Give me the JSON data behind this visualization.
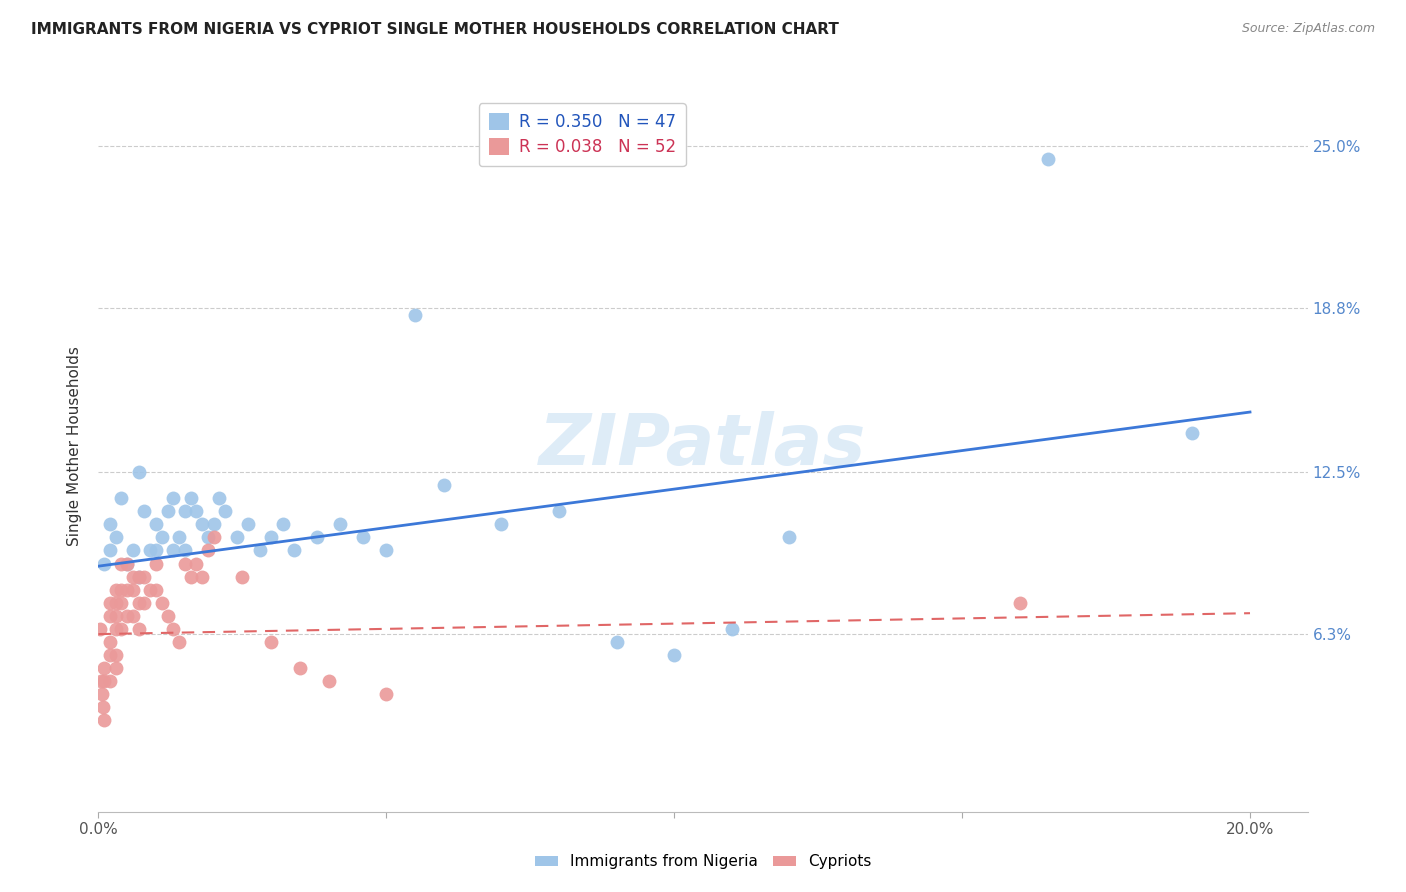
{
  "title": "IMMIGRANTS FROM NIGERIA VS CYPRIOT SINGLE MOTHER HOUSEHOLDS CORRELATION CHART",
  "source": "Source: ZipAtlas.com",
  "ylabel": "Single Mother Households",
  "xlim": [
    0.0,
    0.21
  ],
  "ylim": [
    -0.005,
    0.275
  ],
  "ytick_vals": [
    0.063,
    0.125,
    0.188,
    0.25
  ],
  "ytick_labels": [
    "6.3%",
    "12.5%",
    "18.8%",
    "25.0%"
  ],
  "legend_label_blue": "Immigrants from Nigeria",
  "legend_label_pink": "Cypriots",
  "blue_color": "#9fc5e8",
  "pink_color": "#ea9999",
  "trend_blue_color": "#3c78d8",
  "trend_pink_color": "#e06666",
  "watermark_color": "#d0e4f5",
  "background_color": "#ffffff",
  "grid_color": "#cccccc",
  "nigeria_x": [
    0.001,
    0.002,
    0.002,
    0.003,
    0.004,
    0.005,
    0.006,
    0.007,
    0.007,
    0.008,
    0.009,
    0.01,
    0.01,
    0.011,
    0.012,
    0.013,
    0.013,
    0.014,
    0.015,
    0.015,
    0.016,
    0.017,
    0.018,
    0.019,
    0.02,
    0.021,
    0.022,
    0.024,
    0.026,
    0.028,
    0.03,
    0.032,
    0.034,
    0.038,
    0.042,
    0.046,
    0.05,
    0.055,
    0.06,
    0.07,
    0.08,
    0.09,
    0.1,
    0.11,
    0.12,
    0.165,
    0.19
  ],
  "nigeria_y": [
    0.09,
    0.105,
    0.095,
    0.1,
    0.115,
    0.09,
    0.095,
    0.125,
    0.085,
    0.11,
    0.095,
    0.105,
    0.095,
    0.1,
    0.11,
    0.115,
    0.095,
    0.1,
    0.11,
    0.095,
    0.115,
    0.11,
    0.105,
    0.1,
    0.105,
    0.115,
    0.11,
    0.1,
    0.105,
    0.095,
    0.1,
    0.105,
    0.095,
    0.1,
    0.105,
    0.1,
    0.095,
    0.185,
    0.12,
    0.105,
    0.11,
    0.06,
    0.055,
    0.065,
    0.1,
    0.245,
    0.14
  ],
  "cyprus_x": [
    0.0002,
    0.0004,
    0.0006,
    0.0008,
    0.001,
    0.001,
    0.001,
    0.002,
    0.002,
    0.002,
    0.002,
    0.002,
    0.003,
    0.003,
    0.003,
    0.003,
    0.003,
    0.003,
    0.004,
    0.004,
    0.004,
    0.004,
    0.005,
    0.005,
    0.005,
    0.006,
    0.006,
    0.006,
    0.007,
    0.007,
    0.007,
    0.008,
    0.008,
    0.009,
    0.01,
    0.01,
    0.011,
    0.012,
    0.013,
    0.014,
    0.015,
    0.016,
    0.017,
    0.018,
    0.019,
    0.02,
    0.025,
    0.03,
    0.035,
    0.04,
    0.05,
    0.16
  ],
  "cyprus_y": [
    0.065,
    0.045,
    0.04,
    0.035,
    0.05,
    0.045,
    0.03,
    0.075,
    0.07,
    0.06,
    0.055,
    0.045,
    0.08,
    0.075,
    0.07,
    0.065,
    0.055,
    0.05,
    0.09,
    0.08,
    0.075,
    0.065,
    0.09,
    0.08,
    0.07,
    0.085,
    0.08,
    0.07,
    0.085,
    0.075,
    0.065,
    0.085,
    0.075,
    0.08,
    0.09,
    0.08,
    0.075,
    0.07,
    0.065,
    0.06,
    0.09,
    0.085,
    0.09,
    0.085,
    0.095,
    0.1,
    0.085,
    0.06,
    0.05,
    0.045,
    0.04,
    0.075
  ],
  "trend_blue_x0": 0.0,
  "trend_blue_y0": 0.089,
  "trend_blue_x1": 0.2,
  "trend_blue_y1": 0.148,
  "trend_pink_x0": 0.0,
  "trend_pink_y0": 0.063,
  "trend_pink_x1": 0.2,
  "trend_pink_y1": 0.071
}
